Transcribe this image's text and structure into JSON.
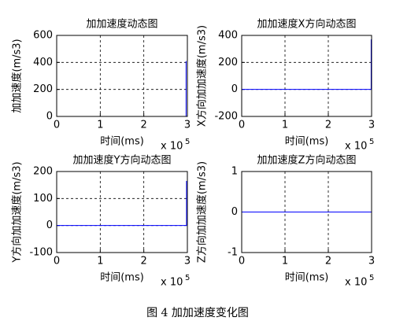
{
  "chart_data": [
    {
      "type": "line",
      "title": "加加速度动态图",
      "xlabel": "时间(ms)",
      "ylabel": "加加速度(m/s3)",
      "x_scale_base": "x 10",
      "x_scale_power": "5",
      "x": [
        0,
        2.97,
        2.97
      ],
      "values": [
        0,
        0,
        410
      ],
      "color": "#0000ff",
      "xlim": [
        0,
        3
      ],
      "xticks": [
        0,
        1,
        2,
        3
      ],
      "ylim": [
        0,
        600
      ],
      "yticks": [
        0,
        200,
        400,
        600
      ],
      "grid": true
    },
    {
      "type": "line",
      "title": "加加速度X方向动态图",
      "xlabel": "时间(ms)",
      "ylabel": "X方向加加速度(m/s3)",
      "x_scale_base": "x 10",
      "x_scale_power": "5",
      "x": [
        0,
        2.99,
        2.99
      ],
      "values": [
        0,
        0,
        370
      ],
      "color": "#0000ff",
      "xlim": [
        0,
        3
      ],
      "xticks": [
        0,
        1,
        2,
        3
      ],
      "ylim": [
        -200,
        400
      ],
      "yticks": [
        -200,
        0,
        200,
        400
      ],
      "grid": true
    },
    {
      "type": "line",
      "title": "加加速度Y方向动态图",
      "xlabel": "时间(ms)",
      "ylabel": "Y方向加加速度(m/s3)",
      "x_scale_base": "x 10",
      "x_scale_power": "5",
      "x": [
        0,
        2.98,
        2.98
      ],
      "values": [
        0,
        0,
        165
      ],
      "color": "#0000ff",
      "xlim": [
        0,
        3
      ],
      "xticks": [
        0,
        1,
        2,
        3
      ],
      "ylim": [
        -100,
        200
      ],
      "yticks": [
        -100,
        0,
        100,
        200
      ],
      "grid": true
    },
    {
      "type": "line",
      "title": "加加速度Z方向动态图",
      "xlabel": "时间(ms)",
      "ylabel": "Z方向加加速度(m/s3)",
      "x_scale_base": "x 10",
      "x_scale_power": "5",
      "x": [
        0,
        3
      ],
      "values": [
        0,
        0
      ],
      "color": "#0000ff",
      "xlim": [
        0,
        3
      ],
      "xticks": [
        0,
        1,
        2,
        3
      ],
      "ylim": [
        -1,
        1
      ],
      "yticks": [
        -1,
        0,
        1
      ],
      "grid": true
    }
  ],
  "caption": "图 4  加加速度变化图"
}
